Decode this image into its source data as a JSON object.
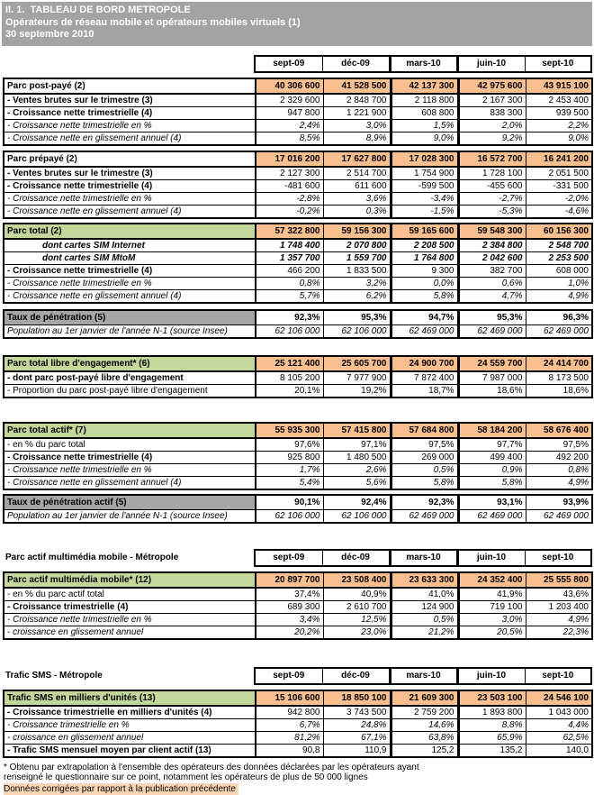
{
  "title_bar": {
    "line1": "II. 1.  TABLEAU DE BORD METROPOLE",
    "line2": "Opérateurs de réseau mobile et opérateurs mobiles virtuels (1)",
    "line3": "30 septembre 2010"
  },
  "columns": [
    "sept-09",
    "déc-09",
    "mars-10",
    "juin-10",
    "sept-10"
  ],
  "colors": {
    "title_bg": "#a3a3a3",
    "orange_value_bg": "#fabf8f",
    "green_label_bg": "#c4d79b",
    "gray_label_bg": "#a6a6a6",
    "footnote_highlight_bg": "#fcd5b4"
  },
  "groups": [
    {
      "section_title": "",
      "blocks": [
        {
          "id": "parc-post-paye",
          "header": {
            "label": "Parc post-payé (2)",
            "label_bg": "white",
            "values_bg": "orange",
            "values": [
              "40 306 600",
              "41 528 500",
              "42 137 300",
              "42 975 600",
              "43 915 100"
            ]
          },
          "rows": [
            {
              "label": "- Ventes brutes sur le trimestre (3)",
              "style": "bold",
              "vstyle": "regular",
              "indent": false,
              "values": [
                "2 329 600",
                "2 848 700",
                "2 118 800",
                "2 167 300",
                "2 453 400"
              ]
            },
            {
              "label": "- Croissance nette trimestrielle (4)",
              "style": "bold",
              "vstyle": "regular",
              "indent": false,
              "values": [
                "947 800",
                "1 221 900",
                "608 800",
                "838 300",
                "939 500"
              ]
            },
            {
              "label": "- Croissance nette trimestrielle en %",
              "style": "italic",
              "vstyle": "italic",
              "indent": false,
              "values": [
                "2,4%",
                "3,0%",
                "1,5%",
                "2,0%",
                "2,2%"
              ]
            },
            {
              "label": "- Croissance nette en glissement annuel (4)",
              "style": "italic",
              "vstyle": "italic",
              "indent": false,
              "values": [
                "8,5%",
                "8,9%",
                "9,0%",
                "9,2%",
                "9,0%"
              ]
            }
          ]
        },
        {
          "id": "parc-prepaye",
          "header": {
            "label": "Parc prépayé (2)",
            "label_bg": "white",
            "values_bg": "orange",
            "values": [
              "17 016 200",
              "17 627 800",
              "17 028 300",
              "16 572 700",
              "16 241 200"
            ]
          },
          "rows": [
            {
              "label": "- Ventes brutes sur le trimestre (3)",
              "style": "bold",
              "vstyle": "regular",
              "indent": false,
              "values": [
                "2 127 300",
                "2 514 700",
                "1 754 900",
                "1 728 100",
                "2 051 500"
              ]
            },
            {
              "label": "- Croissance nette trimestrielle (4)",
              "style": "bold",
              "vstyle": "regular",
              "indent": false,
              "values": [
                "-481 600",
                "611 600",
                "-599 500",
                "-455 600",
                "-331 500"
              ]
            },
            {
              "label": "- Croissance nette trimestrielle en %",
              "style": "italic",
              "vstyle": "italic",
              "indent": false,
              "values": [
                "-2,8%",
                "3,6%",
                "-3,4%",
                "-2,7%",
                "-2,0%"
              ]
            },
            {
              "label": "- Croissance nette en glissement annuel (4)",
              "style": "italic",
              "vstyle": "italic",
              "indent": false,
              "values": [
                "-0,2%",
                "0,3%",
                "-1,5%",
                "-5,3%",
                "-4,6%"
              ]
            }
          ]
        },
        {
          "id": "parc-total",
          "header": {
            "label": "Parc total (2)",
            "label_bg": "green",
            "values_bg": "orange",
            "values": [
              "57 322 800",
              "59 156 300",
              "59 165 600",
              "59 548 300",
              "60 156 300"
            ]
          },
          "rows": [
            {
              "label": "dont cartes SIM Internet",
              "style": "bold-italic",
              "vstyle": "bold-italic",
              "indent": true,
              "values": [
                "1 748 400",
                "2 070 800",
                "2 208 500",
                "2 384 800",
                "2 548 700"
              ]
            },
            {
              "label": "dont cartes SIM MtoM",
              "style": "bold-italic",
              "vstyle": "bold-italic",
              "indent": true,
              "values": [
                "1 357 700",
                "1 559 700",
                "1 764 800",
                "2 042 600",
                "2 253 500"
              ]
            },
            {
              "label": "- Croissance nette trimestrielle (4)",
              "style": "bold",
              "vstyle": "regular",
              "indent": false,
              "values": [
                "466 200",
                "1 833 500",
                "9 300",
                "382 700",
                "608 000"
              ]
            },
            {
              "label": "- Croissance nette trimestrielle en %",
              "style": "italic",
              "vstyle": "italic",
              "indent": false,
              "values": [
                "0,8%",
                "3,2%",
                "0,0%",
                "0,6%",
                "1,0%"
              ]
            },
            {
              "label": "- Croissance nette en glissement annuel (4)",
              "style": "italic",
              "vstyle": "italic",
              "indent": false,
              "values": [
                "5,7%",
                "6,2%",
                "5,8%",
                "4,7%",
                "4,9%"
              ]
            }
          ]
        },
        {
          "id": "taux-penetration",
          "header": {
            "label": "Taux de pénétration (5)",
            "label_bg": "gray",
            "values_bg": "white",
            "thin_sep": true,
            "values": [
              "92,3%",
              "95,3%",
              "94,7%",
              "95,3%",
              "96,3%"
            ]
          },
          "rows": [
            {
              "label": "Population au 1er janvier de l'année N-1 (source Insee)",
              "style": "italic",
              "vstyle": "italic",
              "indent": false,
              "values": [
                "62 106 000",
                "62 106 000",
                "62 469 000",
                "62 469 000",
                "62 469 000"
              ]
            }
          ]
        },
        {
          "id": "parc-libre-engagement",
          "header": {
            "label": "Parc total libre d'engagement* (6)",
            "label_bg": "green",
            "values_bg": "orange",
            "values": [
              "25 121 400",
              "25 605 700",
              "24 900 700",
              "24 559 700",
              "24 414 700"
            ]
          },
          "rows": [
            {
              "label": "- dont parc post-payé libre d'engagement",
              "style": "bold",
              "vstyle": "regular",
              "indent": false,
              "values": [
                "8 105 200",
                "7 977 900",
                "7 872 400",
                "7 987 000",
                "8 173 500"
              ]
            },
            {
              "label": "- Proportion du parc post-payé libre d'engagement",
              "style": "regular",
              "vstyle": "regular",
              "indent": false,
              "values": [
                "20,1%",
                "19,2%",
                "18,7%",
                "18,6%",
                "18,6%"
              ]
            }
          ]
        },
        {
          "id": "parc-total-actif",
          "header": {
            "label": "Parc total actif* (7)",
            "label_bg": "green",
            "values_bg": "orange",
            "values": [
              "55 935 300",
              "57 415 800",
              "57 684 800",
              "58 184 200",
              "58 676 400"
            ]
          },
          "rows": [
            {
              "label": "- en % du parc total",
              "style": "regular",
              "vstyle": "regular",
              "indent": false,
              "values": [
                "97,6%",
                "97,1%",
                "97,5%",
                "97,7%",
                "97,5%"
              ]
            },
            {
              "label": "- Croissance nette trimestrielle (4)",
              "style": "bold",
              "vstyle": "regular",
              "indent": false,
              "values": [
                "925 800",
                "1 480 500",
                "269 000",
                "499 400",
                "492 200"
              ]
            },
            {
              "label": "- Croissance nette trimestrielle en %",
              "style": "italic",
              "vstyle": "italic",
              "indent": false,
              "values": [
                "1,7%",
                "2,6%",
                "0,5%",
                "0,9%",
                "0,8%"
              ]
            },
            {
              "label": "- Croissance nette en glissement annuel (4)",
              "style": "italic",
              "vstyle": "italic",
              "indent": false,
              "values": [
                "5,4%",
                "5,6%",
                "5,8%",
                "5,8%",
                "4,9%"
              ]
            }
          ]
        },
        {
          "id": "taux-penetration-actif",
          "header": {
            "label": "Taux de pénétration actif (5)",
            "label_bg": "gray",
            "values_bg": "white",
            "thin_sep": true,
            "values": [
              "90,1%",
              "92,4%",
              "92,3%",
              "93,1%",
              "93,9%"
            ]
          },
          "rows": [
            {
              "label": "Population au 1er janvier de l'année N-1 (source Insee)",
              "style": "italic",
              "vstyle": "italic",
              "indent": false,
              "values": [
                "62 106 000",
                "62 106 000",
                "62 469 000",
                "62 469 000",
                "62 469 000"
              ]
            }
          ]
        }
      ]
    },
    {
      "section_title": "Parc actif multimédia mobile - Métropole",
      "blocks": [
        {
          "id": "parc-actif-multimedia",
          "header": {
            "label": "Parc actif multimédia mobile* (12)",
            "label_bg": "green",
            "values_bg": "orange",
            "values": [
              "20 897 700",
              "23 508 400",
              "23 633 300",
              "24 352 400",
              "25 555 800"
            ]
          },
          "rows": [
            {
              "label": "- en % du parc actif total",
              "style": "regular",
              "vstyle": "regular",
              "indent": false,
              "values": [
                "37,4%",
                "40,9%",
                "41,0%",
                "41,9%",
                "43,6%"
              ]
            },
            {
              "label": "- Croissance trimestrielle (4)",
              "style": "bold",
              "vstyle": "regular",
              "indent": false,
              "values": [
                "689 300",
                "2 610 700",
                "124 900",
                "719 100",
                "1 203 400"
              ]
            },
            {
              "label": "- Croissance nette trimestrielle en %",
              "style": "italic",
              "vstyle": "italic",
              "indent": false,
              "values": [
                "3,4%",
                "12,5%",
                "0,5%",
                "3,0%",
                "4,9%"
              ]
            },
            {
              "label": "- croissance en glissement annuel",
              "style": "italic",
              "vstyle": "italic",
              "indent": false,
              "values": [
                "20,2%",
                "23,0%",
                "21,2%",
                "20,5%",
                "22,3%"
              ]
            }
          ]
        }
      ]
    },
    {
      "section_title": "Trafic SMS - Métropole",
      "blocks": [
        {
          "id": "trafic-sms",
          "header": {
            "label": "Trafic SMS en milliers d'unités (13)",
            "label_bg": "green",
            "values_bg": "orange",
            "values": [
              "15 106 600",
              "18 850 100",
              "21 609 300",
              "23 503 100",
              "24 546 100"
            ]
          },
          "rows": [
            {
              "label": "- Croissance trimestrielle en milliers d'unités (4)",
              "style": "bold",
              "vstyle": "regular",
              "indent": false,
              "values": [
                "942 800",
                "3 743 500",
                "2 759 200",
                "1 893 800",
                "1 043 000"
              ]
            },
            {
              "label": "- Croissance trimestrielle en %",
              "style": "italic",
              "vstyle": "italic",
              "indent": false,
              "values": [
                "6,7%",
                "24,8%",
                "14,6%",
                "8,8%",
                "4,4%"
              ]
            },
            {
              "label": "- croissance en glissement annuel",
              "style": "italic",
              "vstyle": "italic",
              "indent": false,
              "values": [
                "81,2%",
                "67,1%",
                "63,8%",
                "65,9%",
                "62,5%"
              ]
            },
            {
              "label": "- Trafic SMS mensuel moyen par client actif (13)",
              "style": "bold",
              "vstyle": "regular",
              "indent": false,
              "values": [
                "90,8",
                "110,9",
                "125,2",
                "135,2",
                "140,0"
              ]
            }
          ]
        }
      ]
    }
  ],
  "footnotes": {
    "line1": "* Obtenu par extrapolation à l'ensemble des opérateurs des données déclarées par les opérateurs ayant",
    "line2": "renseigné le questionnaire sur ce point, notamment les opérateurs de plus de 50 000 lignes",
    "highlighted": "Données corrigées par rapport à la publication précédente"
  }
}
